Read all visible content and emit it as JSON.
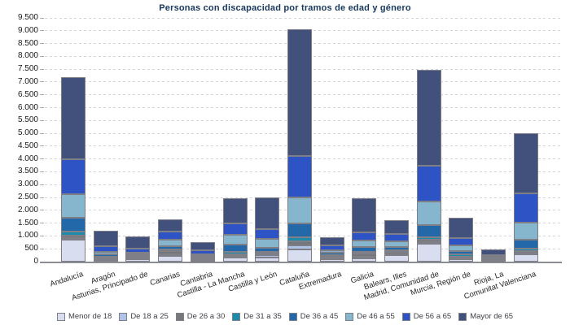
{
  "title": "Personas con discapacidad por tramos de edad y género",
  "chart_data": {
    "type": "bar",
    "subtype": "stacked-vertical",
    "title": "Personas con discapacidad por tramos de edad y género",
    "xlabel": "",
    "ylabel": "",
    "ylim": [
      0,
      9500
    ],
    "ytick_step": 500,
    "grid": "horizontal-dotted",
    "legend_position": "bottom",
    "categories": [
      "Andalucía",
      "Aragón",
      "Asturias, Principado de",
      "Canarias",
      "Cantabria",
      "Castilla - La Mancha",
      "Castilla y León",
      "Cataluña",
      "Extremadura",
      "Galicia",
      "Balears, Illes",
      "Madrid, Comunidad de",
      "Murcia, Región de",
      "Rioja, La",
      "Comunitat Valenciana"
    ],
    "series": [
      {
        "name": "Menor de 18",
        "color": "#d8ddf0",
        "values": [
          850,
          60,
          85,
          235,
          40,
          150,
          170,
          485,
          110,
          130,
          240,
          700,
          100,
          25,
          280
        ]
      },
      {
        "name": "De 18 a 25",
        "color": "#aec3e6",
        "values": [
          70,
          55,
          50,
          40,
          30,
          75,
          75,
          160,
          45,
          60,
          60,
          50,
          40,
          25,
          70
        ]
      },
      {
        "name": "De 26 a 30",
        "color": "#75777b",
        "values": [
          105,
          40,
          55,
          125,
          40,
          65,
          65,
          160,
          60,
          125,
          90,
          105,
          60,
          30,
          75
        ]
      },
      {
        "name": "De 31 a 35",
        "color": "#1d8bac",
        "values": [
          150,
          30,
          30,
          60,
          50,
          75,
          75,
          160,
          50,
          80,
          45,
          85,
          75,
          25,
          85
        ]
      },
      {
        "name": "De 36 a 45",
        "color": "#2368a8",
        "values": [
          525,
          85,
          55,
          135,
          60,
          285,
          145,
          530,
          70,
          160,
          125,
          495,
          135,
          40,
          350
        ]
      },
      {
        "name": "De 46 a 55",
        "color": "#86b6ce",
        "values": [
          940,
          115,
          85,
          260,
          60,
          400,
          350,
          1000,
          115,
          260,
          240,
          900,
          210,
          45,
          655
        ]
      },
      {
        "name": "De 56 a 65",
        "color": "#2d53c5",
        "values": [
          1360,
          230,
          160,
          315,
          165,
          440,
          390,
          1630,
          180,
          315,
          265,
          1400,
          285,
          65,
          1130
        ]
      },
      {
        "name": "Mayor de 65",
        "color": "#42507c",
        "values": [
          3190,
          580,
          460,
          475,
          305,
          970,
          1220,
          4925,
          310,
          1325,
          550,
          3735,
          815,
          235,
          2355
        ]
      }
    ],
    "totals": [
      7190,
      1195,
      980,
      1645,
      750,
      2460,
      2490,
      9050,
      940,
      2455,
      1615,
      7470,
      1720,
      490,
      5000
    ]
  }
}
